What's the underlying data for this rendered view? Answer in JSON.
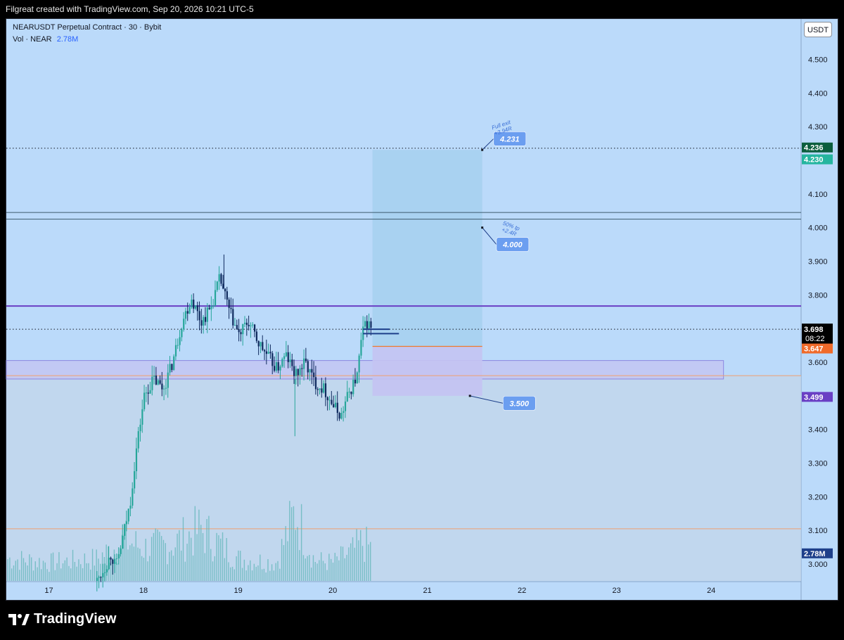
{
  "header": {
    "attribution": "Filgreat created with TradingView.com, Sep 20, 2026 10:21 UTC-5"
  },
  "legend": {
    "symbol": "NEARUSDT Perpetual Contract · 30 · Bybit",
    "volume_label": "Vol · NEAR",
    "volume_value": "2.78M"
  },
  "currency_button": "USDT",
  "brand": {
    "name": "TradingView",
    "icon": "tradingview-logo-icon"
  },
  "colors": {
    "background": "#bbdafa",
    "bull": "#26a69a",
    "bear": "#0f2a5e",
    "target_zone": "#a6d0ee",
    "stop_zone": "#c4c3f2",
    "label_blue": "#6b9ef0",
    "resistance_line": "#6a3fc4",
    "orange_line": "#f0a070"
  },
  "chart_data": {
    "type": "candlestick",
    "symbol": "NEARUSDT",
    "interval": "30",
    "exchange": "Bybit",
    "x_axis": {
      "tick_labels": [
        "17",
        "18",
        "19",
        "20",
        "21",
        "22",
        "23",
        "24"
      ],
      "range_days": [
        16.55,
        24.95
      ]
    },
    "y_axis": {
      "tick_labels": [
        "3.000",
        "3.100",
        "3.200",
        "3.300",
        "3.400",
        "3.500",
        "3.600",
        "3.700",
        "3.800",
        "3.900",
        "4.000",
        "4.100",
        "4.200",
        "4.300",
        "4.400",
        "4.500"
      ],
      "range": [
        2.95,
        4.62
      ]
    },
    "price_path": [
      [
        17.5,
        2.95
      ],
      [
        17.6,
        3.0
      ],
      [
        17.65,
        3.03
      ],
      [
        17.7,
        2.99
      ],
      [
        17.75,
        3.05
      ],
      [
        17.85,
        3.18
      ],
      [
        17.92,
        3.35
      ],
      [
        18.0,
        3.5
      ],
      [
        18.1,
        3.55
      ],
      [
        18.2,
        3.52
      ],
      [
        18.3,
        3.6
      ],
      [
        18.4,
        3.72
      ],
      [
        18.5,
        3.79
      ],
      [
        18.6,
        3.72
      ],
      [
        18.7,
        3.76
      ],
      [
        18.8,
        3.85
      ],
      [
        18.9,
        3.75
      ],
      [
        19.0,
        3.68
      ],
      [
        19.1,
        3.72
      ],
      [
        19.2,
        3.66
      ],
      [
        19.3,
        3.62
      ],
      [
        19.4,
        3.58
      ],
      [
        19.5,
        3.62
      ],
      [
        19.6,
        3.56
      ],
      [
        19.7,
        3.6
      ],
      [
        19.8,
        3.54
      ],
      [
        19.9,
        3.52
      ],
      [
        20.0,
        3.47
      ],
      [
        20.08,
        3.44
      ],
      [
        20.15,
        3.5
      ],
      [
        20.25,
        3.56
      ],
      [
        20.3,
        3.68
      ],
      [
        20.35,
        3.72
      ],
      [
        20.4,
        3.7
      ]
    ],
    "volume_path": [
      [
        16.6,
        0.3
      ],
      [
        17.0,
        0.25
      ],
      [
        17.5,
        0.3
      ],
      [
        17.8,
        0.55
      ],
      [
        18.0,
        0.45
      ],
      [
        18.3,
        0.5
      ],
      [
        18.6,
        0.7
      ],
      [
        19.0,
        0.3
      ],
      [
        19.4,
        0.25
      ],
      [
        19.6,
        0.95
      ],
      [
        19.8,
        0.28
      ],
      [
        20.0,
        0.25
      ],
      [
        20.2,
        0.4
      ],
      [
        20.3,
        0.52
      ],
      [
        20.4,
        0.45
      ]
    ],
    "current_price": "3.698",
    "bar_countdown": "08:22",
    "volume_badge": "2.78M",
    "horizontal_levels": [
      {
        "price": 4.236,
        "style": "dotted",
        "badge": "4.236"
      },
      {
        "price": 4.23,
        "style": "badge",
        "badge": "4.230"
      },
      {
        "price": 4.045,
        "style": "solid"
      },
      {
        "price": 4.025,
        "style": "solid"
      },
      {
        "price": 3.767,
        "style": "solid"
      },
      {
        "price": 3.698,
        "style": "dotted"
      },
      {
        "price": 3.647,
        "style": "badge",
        "badge": "3.647"
      },
      {
        "price": 3.499,
        "style": "badge",
        "badge": "3.499"
      },
      {
        "price": 3.105,
        "style": "solid"
      }
    ],
    "position": {
      "entry": 3.647,
      "stop": 3.5,
      "target": 4.231,
      "x_range": [
        20.42,
        21.58
      ]
    },
    "zones": [
      {
        "price_top": 3.605,
        "price_bottom": 3.55,
        "x_range": [
          16.55,
          24.13
        ]
      }
    ],
    "annotations": [
      {
        "text": "4.231",
        "title": "Full exit",
        "subtitle": "+3.94R"
      },
      {
        "text": "4.000",
        "title": "50% tp",
        "subtitle": "+2.4R"
      },
      {
        "text": "3.500"
      }
    ]
  }
}
